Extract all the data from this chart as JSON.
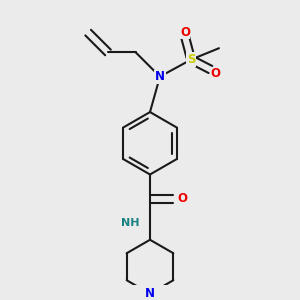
{
  "bg_color": "#ebebeb",
  "bond_color": "#1a1a1a",
  "N_color": "#0000ee",
  "O_color": "#ee0000",
  "S_color": "#cccc00",
  "H_color": "#1a8080",
  "line_width": 1.5,
  "figsize": [
    3.0,
    3.0
  ],
  "dpi": 100,
  "xlim": [
    0,
    10
  ],
  "ylim": [
    0,
    10
  ]
}
